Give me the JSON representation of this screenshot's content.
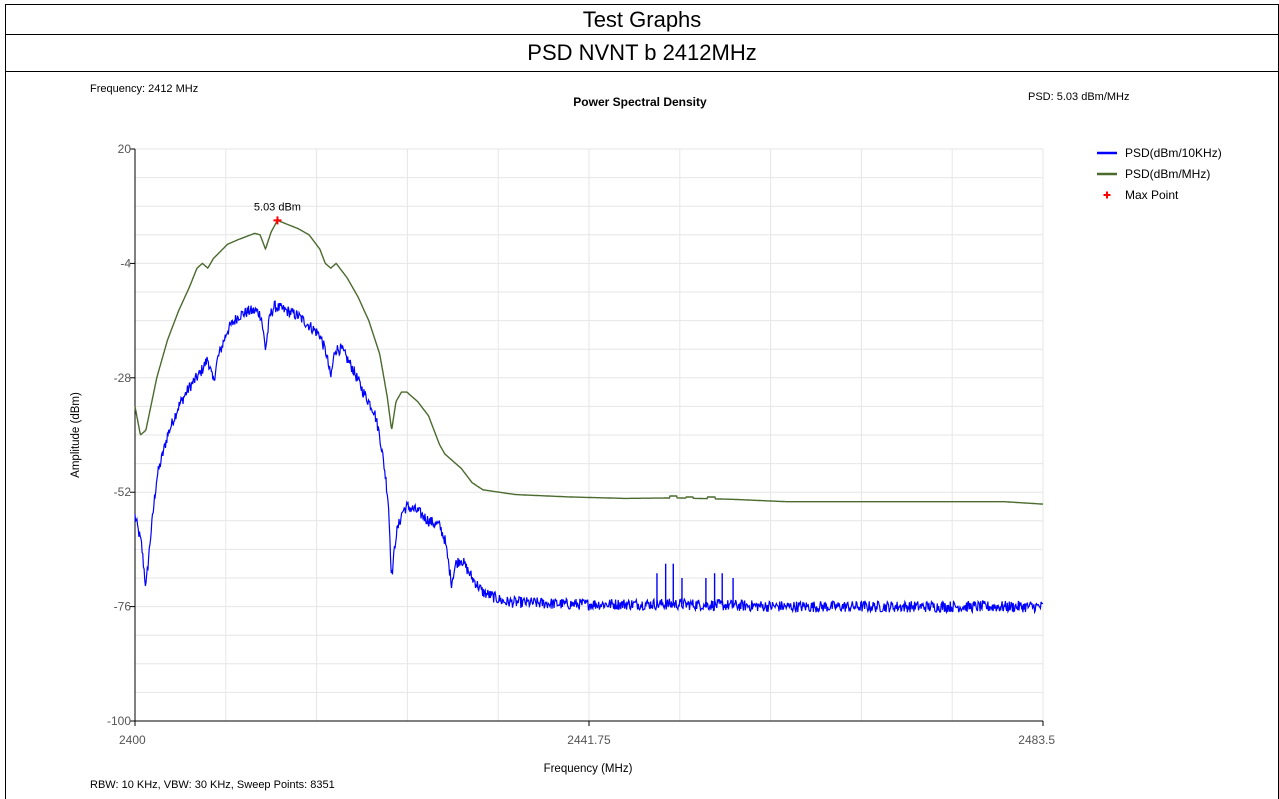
{
  "header": {
    "title": "Test Graphs",
    "subtitle": "PSD NVNT b 2412MHz"
  },
  "info": {
    "frequency": "Frequency: 2412 MHz",
    "psd": "PSD: 5.03 dBm/MHz",
    "footer": "RBW: 10 KHz,  VBW: 30 KHz,  Sweep Points: 8351"
  },
  "chart_data": {
    "type": "line",
    "title": "Power Spectral Density",
    "xlabel": "Frequency (MHz)",
    "ylabel": "Amplitude (dBm)",
    "xlim": [
      2400,
      2483.5
    ],
    "ylim": [
      -100,
      20
    ],
    "x_ticks": [
      "2400",
      "2441.75",
      "2483.5"
    ],
    "y_ticks": [
      "20",
      "-4",
      "-28",
      "-52",
      "-76",
      "-100"
    ],
    "grid": true,
    "legend_position": "top-right",
    "series": [
      {
        "name": "PSD(dBm/10KHz)",
        "color": "#0000ff",
        "noise_db": 1.2,
        "points": [
          [
            2400,
            -57
          ],
          [
            2400.6,
            -63
          ],
          [
            2401,
            -72
          ],
          [
            2401.4,
            -62
          ],
          [
            2402,
            -49
          ],
          [
            2403,
            -40
          ],
          [
            2404,
            -34
          ],
          [
            2405,
            -30
          ],
          [
            2406,
            -27
          ],
          [
            2406.7,
            -24
          ],
          [
            2407.2,
            -29
          ],
          [
            2407.6,
            -24
          ],
          [
            2408.5,
            -18
          ],
          [
            2409.5,
            -15
          ],
          [
            2410.5,
            -14
          ],
          [
            2411.2,
            -14
          ],
          [
            2411.6,
            -15
          ],
          [
            2412,
            -22
          ],
          [
            2412.4,
            -15
          ],
          [
            2412.8,
            -13
          ],
          [
            2414,
            -14
          ],
          [
            2415,
            -15
          ],
          [
            2416,
            -17
          ],
          [
            2417,
            -19
          ],
          [
            2417.6,
            -23
          ],
          [
            2418,
            -28
          ],
          [
            2418.4,
            -22
          ],
          [
            2419,
            -22
          ],
          [
            2420,
            -26
          ],
          [
            2421,
            -31
          ],
          [
            2422,
            -35
          ],
          [
            2422.5,
            -40
          ],
          [
            2423,
            -48
          ],
          [
            2423.3,
            -54
          ],
          [
            2423.6,
            -70
          ],
          [
            2424,
            -61
          ],
          [
            2424.6,
            -56
          ],
          [
            2425,
            -55
          ],
          [
            2426,
            -56
          ],
          [
            2427,
            -58
          ],
          [
            2428,
            -59
          ],
          [
            2428.5,
            -62
          ],
          [
            2429.1,
            -71
          ],
          [
            2429.5,
            -67
          ],
          [
            2430,
            -66
          ],
          [
            2431,
            -70
          ],
          [
            2432,
            -73
          ],
          [
            2434,
            -75
          ],
          [
            2440,
            -75.5
          ],
          [
            2450,
            -75.5
          ],
          [
            2460,
            -76
          ],
          [
            2470,
            -76
          ],
          [
            2483.5,
            -76
          ]
        ],
        "spikes": [
          {
            "x": 2448,
            "y": -69
          },
          {
            "x": 2448.8,
            "y": -67
          },
          {
            "x": 2449.5,
            "y": -67
          },
          {
            "x": 2450.3,
            "y": -70
          },
          {
            "x": 2452.5,
            "y": -70
          },
          {
            "x": 2453.3,
            "y": -69
          },
          {
            "x": 2454,
            "y": -69
          },
          {
            "x": 2455,
            "y": -70
          }
        ]
      },
      {
        "name": "PSD(dBm/MHz)",
        "color": "#4b6a2e",
        "noise_db": 0,
        "points": [
          [
            2400,
            -34
          ],
          [
            2400.5,
            -40
          ],
          [
            2401,
            -39
          ],
          [
            2402,
            -28
          ],
          [
            2403,
            -20
          ],
          [
            2404,
            -14
          ],
          [
            2405,
            -9
          ],
          [
            2405.7,
            -5
          ],
          [
            2406.2,
            -4
          ],
          [
            2406.7,
            -5
          ],
          [
            2407.2,
            -3
          ],
          [
            2408.5,
            0
          ],
          [
            2409.5,
            1
          ],
          [
            2411,
            2.3
          ],
          [
            2411.5,
            2
          ],
          [
            2412,
            -1
          ],
          [
            2412.5,
            2.5
          ],
          [
            2413.1,
            5.03
          ],
          [
            2414,
            4.2
          ],
          [
            2415,
            3.3
          ],
          [
            2416,
            2
          ],
          [
            2417,
            -1
          ],
          [
            2417.5,
            -4
          ],
          [
            2418,
            -5
          ],
          [
            2418.5,
            -4
          ],
          [
            2419.5,
            -7
          ],
          [
            2420.5,
            -11
          ],
          [
            2421.5,
            -16
          ],
          [
            2422.5,
            -23
          ],
          [
            2423.2,
            -32
          ],
          [
            2423.6,
            -39
          ],
          [
            2424,
            -33
          ],
          [
            2424.5,
            -31
          ],
          [
            2425,
            -31
          ],
          [
            2426,
            -33
          ],
          [
            2427,
            -36
          ],
          [
            2428,
            -42
          ],
          [
            2428.5,
            -44
          ],
          [
            2429,
            -45
          ],
          [
            2430,
            -47
          ],
          [
            2431,
            -50
          ],
          [
            2432,
            -51.5
          ],
          [
            2435,
            -52.5
          ],
          [
            2440,
            -53
          ],
          [
            2445,
            -53.3
          ],
          [
            2450,
            -53.2
          ],
          [
            2455,
            -53.5
          ],
          [
            2460,
            -54
          ],
          [
            2470,
            -54
          ],
          [
            2480,
            -54
          ],
          [
            2483.5,
            -54.5
          ]
        ],
        "bumps": [
          {
            "x": 2449.5,
            "y": -52.8
          },
          {
            "x": 2451,
            "y": -53
          },
          {
            "x": 2453,
            "y": -53
          }
        ]
      }
    ],
    "max_point": {
      "name": "Max Point",
      "x": 2413.1,
      "y": 5.03,
      "label": "5.03 dBm",
      "color": "#ff0000"
    }
  }
}
